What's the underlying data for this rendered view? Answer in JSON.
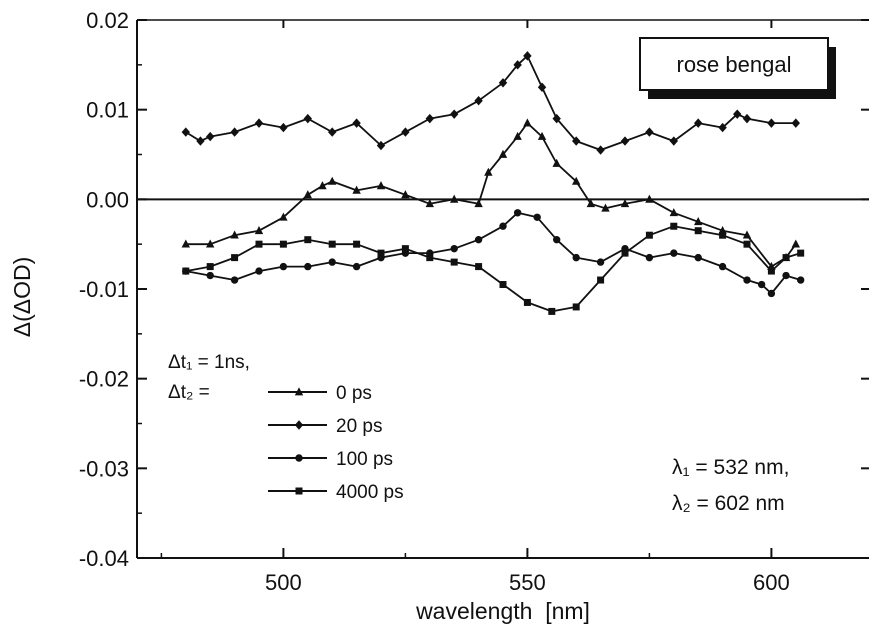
{
  "chart_data": {
    "type": "line",
    "title": "",
    "xlabel": "wavelength  [nm]",
    "ylabel": "Δ(ΔOD)",
    "xlim": [
      470,
      620
    ],
    "ylim": [
      -0.04,
      0.02
    ],
    "xticks": [
      500,
      550,
      600
    ],
    "xtick_labels": [
      "500",
      "550",
      "600"
    ],
    "yticks": [
      0.02,
      0.01,
      0.0,
      -0.01,
      -0.02,
      -0.03,
      -0.04
    ],
    "ytick_labels": [
      "0.02",
      "0.01",
      "0.00",
      "-0.01",
      "-0.02",
      "-0.03",
      "-0.04"
    ],
    "grid": false,
    "reference_line_y": 0.0,
    "annotation_box": "rose bengal",
    "legend_header": [
      "Δt₁ = 1ns,",
      "Δt₂ ="
    ],
    "annotation_wavelengths": [
      "λ₁ = 532 nm,",
      "λ₂ = 602 nm"
    ],
    "legend_position": "bottom-left",
    "series": [
      {
        "name": "0 ps",
        "marker": "triangle",
        "x": [
          480,
          485,
          490,
          495,
          500,
          505,
          508,
          510,
          515,
          520,
          525,
          530,
          535,
          540,
          542,
          545,
          548,
          550,
          553,
          556,
          560,
          563,
          566,
          570,
          575,
          580,
          585,
          590,
          595,
          600,
          603,
          605
        ],
        "y": [
          -0.005,
          -0.005,
          -0.004,
          -0.0035,
          -0.002,
          0.0005,
          0.0015,
          0.002,
          0.001,
          0.0015,
          0.0005,
          -0.0005,
          0.0,
          -0.0005,
          0.003,
          0.005,
          0.007,
          0.0085,
          0.007,
          0.004,
          0.002,
          -0.0005,
          -0.001,
          -0.0005,
          0.0,
          -0.0015,
          -0.0025,
          -0.0035,
          -0.004,
          -0.0075,
          -0.0065,
          -0.005
        ]
      },
      {
        "name": "20 ps",
        "marker": "diamond",
        "x": [
          480,
          483,
          485,
          490,
          495,
          500,
          505,
          510,
          515,
          520,
          525,
          530,
          535,
          540,
          545,
          548,
          550,
          553,
          556,
          560,
          565,
          570,
          575,
          580,
          585,
          590,
          593,
          595,
          600,
          605
        ],
        "y": [
          0.0075,
          0.0065,
          0.007,
          0.0075,
          0.0085,
          0.008,
          0.009,
          0.0075,
          0.0085,
          0.006,
          0.0075,
          0.009,
          0.0095,
          0.011,
          0.013,
          0.015,
          0.016,
          0.0125,
          0.009,
          0.0065,
          0.0055,
          0.0065,
          0.0075,
          0.0065,
          0.0085,
          0.008,
          0.0095,
          0.009,
          0.0085,
          0.0085
        ]
      },
      {
        "name": "100 ps",
        "marker": "circle",
        "x": [
          480,
          485,
          490,
          495,
          500,
          505,
          510,
          515,
          520,
          525,
          530,
          535,
          540,
          545,
          548,
          552,
          556,
          560,
          565,
          570,
          575,
          580,
          585,
          590,
          595,
          598,
          600,
          603,
          606
        ],
        "y": [
          -0.008,
          -0.0085,
          -0.009,
          -0.008,
          -0.0075,
          -0.0075,
          -0.007,
          -0.0075,
          -0.0065,
          -0.006,
          -0.006,
          -0.0055,
          -0.0045,
          -0.003,
          -0.0015,
          -0.002,
          -0.0045,
          -0.0065,
          -0.007,
          -0.0055,
          -0.0065,
          -0.006,
          -0.0065,
          -0.0075,
          -0.009,
          -0.0095,
          -0.0105,
          -0.0085,
          -0.009
        ]
      },
      {
        "name": "4000 ps",
        "marker": "square",
        "x": [
          480,
          485,
          490,
          495,
          500,
          505,
          510,
          515,
          520,
          525,
          530,
          535,
          540,
          545,
          550,
          555,
          560,
          565,
          570,
          575,
          580,
          585,
          590,
          595,
          600,
          603,
          606
        ],
        "y": [
          -0.008,
          -0.0075,
          -0.0065,
          -0.005,
          -0.005,
          -0.0045,
          -0.005,
          -0.005,
          -0.006,
          -0.0055,
          -0.0065,
          -0.007,
          -0.0075,
          -0.0095,
          -0.0115,
          -0.0125,
          -0.012,
          -0.009,
          -0.006,
          -0.004,
          -0.003,
          -0.0035,
          -0.004,
          -0.005,
          -0.008,
          -0.0065,
          -0.006
        ]
      }
    ]
  }
}
